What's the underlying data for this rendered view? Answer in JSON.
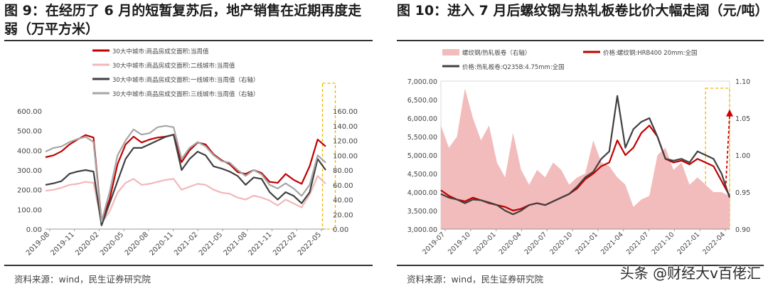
{
  "page": {
    "source_left": "资料来源：wind，民生证券研究院",
    "source_right": "资料来源：wind，民生证券研究院",
    "watermark": "头条 @财经大v百佬汇"
  },
  "chart_data": [
    {
      "type": "line",
      "title": "图 9：在经历了 6 月的短暂复苏后，地产销售在近期再度走弱（万平方米）",
      "x_tick_labels": [
        "2019-08",
        "2019-11",
        "2020-02",
        "2020-05",
        "2020-08",
        "2020-11",
        "2021-02",
        "2021-05",
        "2021-08",
        "2021-11",
        "2022-02",
        "2022-05"
      ],
      "ylim": [
        0,
        600
      ],
      "yticks": [
        "0.00",
        "100.00",
        "200.00",
        "300.00",
        "400.00",
        "500.00",
        "600.00"
      ],
      "y2lim": [
        0,
        160
      ],
      "y2ticks": [
        "0.00",
        "20.00",
        "40.00",
        "60.00",
        "80.00",
        "100.00",
        "120.00",
        "140.00",
        "160.00"
      ],
      "legend_placement": "top-left",
      "highlight_box": {
        "x_from": 34.6,
        "x_to": 36.2,
        "color": "#f0b400"
      },
      "series": [
        {
          "name": "30大中城市:商品房成交面积:当周值",
          "axis": "left",
          "color": "#c00000",
          "points": [
            [
              0,
              365
            ],
            [
              1,
              375
            ],
            [
              2,
              395
            ],
            [
              3,
              430
            ],
            [
              4,
              455
            ],
            [
              5,
              478
            ],
            [
              6,
              465
            ],
            [
              7,
              40
            ],
            [
              8,
              150
            ],
            [
              9,
              330
            ],
            [
              10,
              430
            ],
            [
              11,
              470
            ],
            [
              12,
              440
            ],
            [
              13,
              455
            ],
            [
              14,
              465
            ],
            [
              15,
              470
            ],
            [
              16,
              480
            ],
            [
              17,
              340
            ],
            [
              18,
              400
            ],
            [
              19,
              440
            ],
            [
              20,
              430
            ],
            [
              21,
              380
            ],
            [
              22,
              350
            ],
            [
              23,
              330
            ],
            [
              24,
              290
            ],
            [
              25,
              280
            ],
            [
              26,
              300
            ],
            [
              27,
              285
            ],
            [
              28,
              240
            ],
            [
              29,
              235
            ],
            [
              30,
              280
            ],
            [
              31,
              250
            ],
            [
              32,
              230
            ],
            [
              33,
              320
            ],
            [
              34,
              455
            ],
            [
              35,
              420
            ]
          ]
        },
        {
          "name": "30大中城市:商品房成交面积:二线城市:当周值",
          "axis": "left",
          "color": "#f2b8b8",
          "points": [
            [
              0,
              195
            ],
            [
              1,
              200
            ],
            [
              2,
              210
            ],
            [
              3,
              225
            ],
            [
              4,
              230
            ],
            [
              5,
              240
            ],
            [
              6,
              235
            ],
            [
              7,
              30
            ],
            [
              8,
              90
            ],
            [
              9,
              185
            ],
            [
              10,
              235
            ],
            [
              11,
              255
            ],
            [
              12,
              225
            ],
            [
              13,
              230
            ],
            [
              14,
              240
            ],
            [
              15,
              250
            ],
            [
              16,
              255
            ],
            [
              17,
              200
            ],
            [
              18,
              215
            ],
            [
              19,
              230
            ],
            [
              20,
              225
            ],
            [
              21,
              200
            ],
            [
              22,
              185
            ],
            [
              23,
              180
            ],
            [
              24,
              160
            ],
            [
              25,
              150
            ],
            [
              26,
              170
            ],
            [
              27,
              160
            ],
            [
              28,
              145
            ],
            [
              29,
              120
            ],
            [
              30,
              150
            ],
            [
              31,
              130
            ],
            [
              32,
              110
            ],
            [
              33,
              175
            ],
            [
              34,
              270
            ],
            [
              35,
              230
            ]
          ]
        },
        {
          "name": "30大中城市:商品房成交面积:一线城市:当周值（右轴）",
          "axis": "right",
          "color": "#404040",
          "points": [
            [
              0,
              60
            ],
            [
              1,
              62
            ],
            [
              2,
              65
            ],
            [
              3,
              75
            ],
            [
              4,
              78
            ],
            [
              5,
              80
            ],
            [
              6,
              78
            ],
            [
              7,
              5
            ],
            [
              8,
              35
            ],
            [
              9,
              65
            ],
            [
              10,
              95
            ],
            [
              11,
              110
            ],
            [
              12,
              110
            ],
            [
              13,
              115
            ],
            [
              14,
              120
            ],
            [
              15,
              125
            ],
            [
              16,
              128
            ],
            [
              17,
              80
            ],
            [
              18,
              95
            ],
            [
              19,
              105
            ],
            [
              20,
              100
            ],
            [
              21,
              85
            ],
            [
              22,
              82
            ],
            [
              23,
              78
            ],
            [
              24,
              72
            ],
            [
              25,
              60
            ],
            [
              26,
              70
            ],
            [
              27,
              68
            ],
            [
              28,
              50
            ],
            [
              29,
              40
            ],
            [
              30,
              50
            ],
            [
              31,
              45
            ],
            [
              32,
              35
            ],
            [
              33,
              50
            ],
            [
              34,
              95
            ],
            [
              35,
              80
            ]
          ]
        },
        {
          "name": "30大中城市:商品房成交面积:三线城市:当周值（右轴）",
          "axis": "right",
          "color": "#a6a6a6",
          "points": [
            [
              0,
              105
            ],
            [
              1,
              110
            ],
            [
              2,
              112
            ],
            [
              3,
              118
            ],
            [
              4,
              122
            ],
            [
              5,
              125
            ],
            [
              6,
              118
            ],
            [
              7,
              10
            ],
            [
              8,
              50
            ],
            [
              9,
              100
            ],
            [
              10,
              120
            ],
            [
              11,
              135
            ],
            [
              12,
              128
            ],
            [
              13,
              130
            ],
            [
              14,
              138
            ],
            [
              15,
              140
            ],
            [
              16,
              138
            ],
            [
              17,
              95
            ],
            [
              18,
              110
            ],
            [
              19,
              118
            ],
            [
              20,
              112
            ],
            [
              21,
              100
            ],
            [
              22,
              92
            ],
            [
              23,
              90
            ],
            [
              24,
              80
            ],
            [
              25,
              72
            ],
            [
              26,
              80
            ],
            [
              27,
              74
            ],
            [
              28,
              60
            ],
            [
              29,
              55
            ],
            [
              30,
              62
            ],
            [
              31,
              55
            ],
            [
              32,
              45
            ],
            [
              33,
              60
            ],
            [
              34,
              100
            ],
            [
              35,
              90
            ]
          ]
        }
      ]
    },
    {
      "type": "line",
      "title": "图 10：进入 7 月后螺纹钢与热轧板卷比价大幅走阔（元/吨）",
      "x_tick_labels": [
        "2019-07",
        "2019-10",
        "2020-01",
        "2020-04",
        "2020-07",
        "2020-10",
        "2021-01",
        "2021-04",
        "2021-07",
        "2021-10",
        "2022-01",
        "2022-04"
      ],
      "ylim": [
        3000,
        7000
      ],
      "yticks": [
        "3,000.00",
        "3,500.00",
        "4,000.00",
        "4,500.00",
        "5,000.00",
        "5,500.00",
        "6,000.00",
        "6,500.00",
        "7,000.00"
      ],
      "y2lim": [
        0.9,
        1.1
      ],
      "y2ticks": [
        "0.90",
        "0.95",
        "1.00",
        "1.05",
        "1.10"
      ],
      "legend_placement": "top",
      "highlight_box": {
        "x_from": 33,
        "x_to": 36,
        "color": "#f0b400"
      },
      "arrow": {
        "from": [
          35.5,
          0.955
        ],
        "to": [
          36,
          1.06
        ],
        "color": "#d00000"
      },
      "series": [
        {
          "name": "螺纹钢/热轧板卷（右轴）",
          "axis": "right",
          "type": "area",
          "color": "#f2bcbc",
          "points": [
            [
              0,
              1.04
            ],
            [
              1,
              1.01
            ],
            [
              2,
              1.025
            ],
            [
              3,
              1.09
            ],
            [
              4,
              1.05
            ],
            [
              5,
              1.02
            ],
            [
              6,
              1.04
            ],
            [
              7,
              0.99
            ],
            [
              8,
              0.97
            ],
            [
              9,
              1.03
            ],
            [
              10,
              0.98
            ],
            [
              11,
              0.96
            ],
            [
              12,
              0.98
            ],
            [
              13,
              0.97
            ],
            [
              14,
              0.99
            ],
            [
              15,
              0.98
            ],
            [
              16,
              0.96
            ],
            [
              17,
              0.97
            ],
            [
              18,
              0.975
            ],
            [
              19,
              1.02
            ],
            [
              20,
              0.99
            ],
            [
              21,
              0.985
            ],
            [
              22,
              0.97
            ],
            [
              23,
              0.96
            ],
            [
              24,
              0.93
            ],
            [
              25,
              0.94
            ],
            [
              26,
              0.945
            ],
            [
              27,
              1.0
            ],
            [
              28,
              1.01
            ],
            [
              29,
              0.98
            ],
            [
              30,
              0.99
            ],
            [
              31,
              0.96
            ],
            [
              32,
              0.97
            ],
            [
              33,
              0.96
            ],
            [
              34,
              0.95
            ],
            [
              35,
              0.95
            ],
            [
              36,
              0.945
            ]
          ]
        },
        {
          "name": "价格:螺纹钢:HRB400 20mm:全国",
          "axis": "left",
          "color": "#c00000",
          "points": [
            [
              0,
              4050
            ],
            [
              1,
              3900
            ],
            [
              2,
              3800
            ],
            [
              3,
              3750
            ],
            [
              4,
              3850
            ],
            [
              5,
              3780
            ],
            [
              6,
              3700
            ],
            [
              7,
              3650
            ],
            [
              8,
              3600
            ],
            [
              9,
              3500
            ],
            [
              10,
              3550
            ],
            [
              11,
              3650
            ],
            [
              12,
              3700
            ],
            [
              13,
              3650
            ],
            [
              14,
              3750
            ],
            [
              15,
              3850
            ],
            [
              16,
              3950
            ],
            [
              17,
              4100
            ],
            [
              18,
              4350
            ],
            [
              19,
              4500
            ],
            [
              20,
              4700
            ],
            [
              21,
              4800
            ],
            [
              22,
              5400
            ],
            [
              23,
              5000
            ],
            [
              24,
              5200
            ],
            [
              25,
              5600
            ],
            [
              26,
              5800
            ],
            [
              27,
              5500
            ],
            [
              28,
              4900
            ],
            [
              29,
              4800
            ],
            [
              30,
              4850
            ],
            [
              31,
              4750
            ],
            [
              32,
              4900
            ],
            [
              33,
              4800
            ],
            [
              34,
              4700
            ],
            [
              35,
              4300
            ],
            [
              36,
              3900
            ]
          ]
        },
        {
          "name": "价格:热轧板卷:Q235B:4.75mm:全国",
          "axis": "left",
          "color": "#404040",
          "points": [
            [
              0,
              3950
            ],
            [
              1,
              3850
            ],
            [
              2,
              3800
            ],
            [
              3,
              3700
            ],
            [
              4,
              3800
            ],
            [
              5,
              3780
            ],
            [
              6,
              3720
            ],
            [
              7,
              3650
            ],
            [
              8,
              3500
            ],
            [
              9,
              3400
            ],
            [
              10,
              3500
            ],
            [
              11,
              3650
            ],
            [
              12,
              3700
            ],
            [
              13,
              3650
            ],
            [
              14,
              3750
            ],
            [
              15,
              3850
            ],
            [
              16,
              3950
            ],
            [
              17,
              4150
            ],
            [
              18,
              4400
            ],
            [
              19,
              4550
            ],
            [
              20,
              4900
            ],
            [
              21,
              5100
            ],
            [
              22,
              6600
            ],
            [
              23,
              5200
            ],
            [
              24,
              5700
            ],
            [
              25,
              5900
            ],
            [
              26,
              6000
            ],
            [
              27,
              5500
            ],
            [
              28,
              4900
            ],
            [
              29,
              4850
            ],
            [
              30,
              4900
            ],
            [
              31,
              4800
            ],
            [
              32,
              5100
            ],
            [
              33,
              5000
            ],
            [
              34,
              4900
            ],
            [
              35,
              4500
            ],
            [
              36,
              3850
            ]
          ]
        }
      ]
    }
  ]
}
